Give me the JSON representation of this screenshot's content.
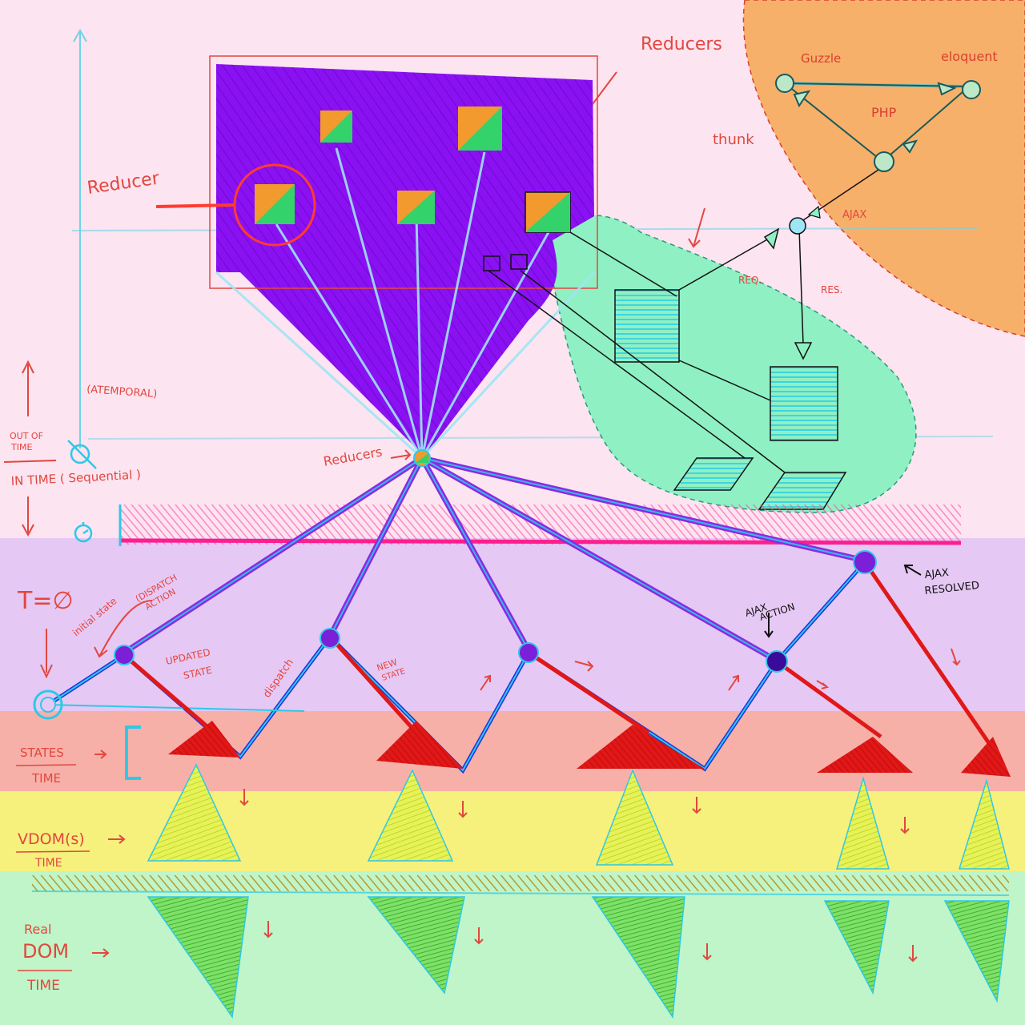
{
  "colors": {
    "background": "#fce4f0",
    "band_lavender": "#e6c8f4",
    "band_states": "#f6b0a8",
    "band_vdom": "#f6f07c",
    "band_realdom": "#bff5c8",
    "reducer_panel": "#8a12f2",
    "thunk_blob": "#8ff0c4",
    "php_blob": "#f7b06a",
    "timeline_purple": "#8a2be2",
    "state_red": "#e01818",
    "cyan": "#2ec8e8",
    "magenta": "#ff1e8c"
  },
  "labels": {
    "reducers_top": "Reducers",
    "reducer_single": "Reducer",
    "thunk": "thunk",
    "guzzle": "Guzzle",
    "eloquent": "eloquent",
    "php": "PHP",
    "ajax": "AJAX",
    "req": "REQ.",
    "res": "RES.",
    "atemporal": "(ATEMPORAL)",
    "out_of_time_1": "OUT OF",
    "out_of_time_2": "TIME",
    "in_time": "IN TIME ( Sequential )",
    "reducers_hub": "Reducers",
    "t_zero": "T=∅",
    "initial_state": "initial state",
    "dispatch_action_1": "(DISPATCH",
    "dispatch_action_2": "ACTION",
    "updated_state_1": "UPDATED",
    "updated_state_2": "STATE",
    "dispatch": "dispatch",
    "new_state_1": "NEW",
    "new_state_2": "STATE",
    "ajax_action_1": "AJAX",
    "ajax_action_2": "ACTION",
    "ajax_resolved_1": "AJAX",
    "ajax_resolved_2": "RESOLVED",
    "states_1": "STATES",
    "states_2": "TIME",
    "vdom_1": "VDOM(s)",
    "vdom_2": "TIME",
    "realdom_1": "Real",
    "realdom_2": "DOM",
    "realdom_3": "TIME"
  }
}
